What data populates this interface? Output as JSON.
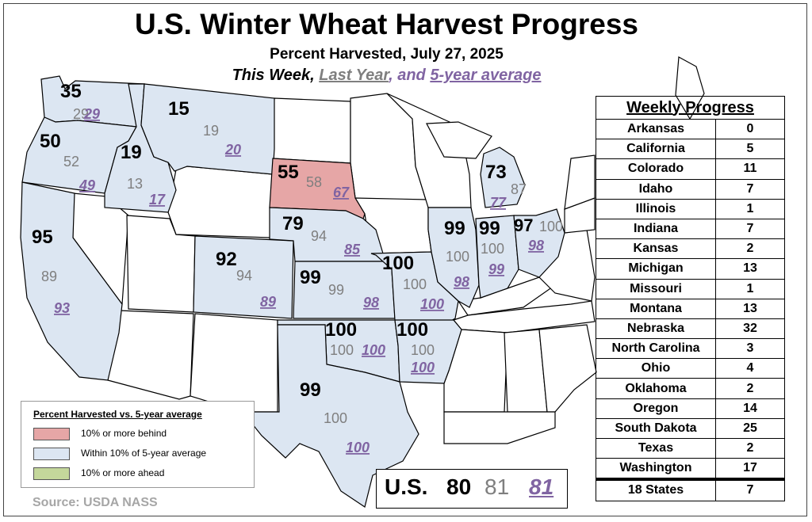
{
  "title": "U.S. Winter Wheat Harvest Progress",
  "subtitle": "Percent Harvested, July 27, 2025",
  "key_line": {
    "this_week": "This Week",
    "sep1": ", ",
    "last_year": "Last Year",
    "sep2": ", and ",
    "avg": "5-year average"
  },
  "colors": {
    "behind": "#e6a6a6",
    "within": "#dce6f2",
    "ahead": "#c4d79b",
    "unreported": "#ffffff",
    "last_year": "#7f7f7f",
    "avg": "#8064a2"
  },
  "states": [
    {
      "name": "Washington",
      "status": "within",
      "this_week": "35",
      "last_year": "29",
      "avg": "29"
    },
    {
      "name": "Oregon",
      "status": "within",
      "this_week": "50",
      "last_year": "52",
      "avg": "49"
    },
    {
      "name": "Idaho",
      "status": "within",
      "this_week": "19",
      "last_year": "13",
      "avg": "17"
    },
    {
      "name": "Montana",
      "status": "within",
      "this_week": "15",
      "last_year": "19",
      "avg": "20"
    },
    {
      "name": "California",
      "status": "within",
      "this_week": "95",
      "last_year": "89",
      "avg": "93"
    },
    {
      "name": "Colorado",
      "status": "within",
      "this_week": "92",
      "last_year": "94",
      "avg": "89"
    },
    {
      "name": "South Dakota",
      "status": "behind",
      "this_week": "55",
      "last_year": "58",
      "avg": "67"
    },
    {
      "name": "Nebraska",
      "status": "within",
      "this_week": "79",
      "last_year": "94",
      "avg": "85"
    },
    {
      "name": "Kansas",
      "status": "within",
      "this_week": "99",
      "last_year": "99",
      "avg": "98"
    },
    {
      "name": "Oklahoma",
      "status": "within",
      "this_week": "100",
      "last_year": "100",
      "avg": "100"
    },
    {
      "name": "Texas",
      "status": "within",
      "this_week": "99",
      "last_year": "100",
      "avg": "100"
    },
    {
      "name": "Missouri",
      "status": "within",
      "this_week": "100",
      "last_year": "100",
      "avg": "100"
    },
    {
      "name": "Arkansas",
      "status": "within",
      "this_week": "100",
      "last_year": "100",
      "avg": "100"
    },
    {
      "name": "Illinois",
      "status": "within",
      "this_week": "99",
      "last_year": "100",
      "avg": "98"
    },
    {
      "name": "Indiana",
      "status": "within",
      "this_week": "99",
      "last_year": "100",
      "avg": "99"
    },
    {
      "name": "Ohio",
      "status": "within",
      "this_week": "97",
      "last_year": "100",
      "avg": "98"
    },
    {
      "name": "Michigan",
      "status": "within",
      "this_week": "73",
      "last_year": "87",
      "avg": "77"
    }
  ],
  "weekly_progress": {
    "header": "Weekly Progress",
    "rows": [
      {
        "state": "Arkansas",
        "value": "0"
      },
      {
        "state": "California",
        "value": "5"
      },
      {
        "state": "Colorado",
        "value": "11"
      },
      {
        "state": "Idaho",
        "value": "7"
      },
      {
        "state": "Illinois",
        "value": "1"
      },
      {
        "state": "Indiana",
        "value": "7"
      },
      {
        "state": "Kansas",
        "value": "2"
      },
      {
        "state": "Michigan",
        "value": "13"
      },
      {
        "state": "Missouri",
        "value": "1"
      },
      {
        "state": "Montana",
        "value": "13"
      },
      {
        "state": "Nebraska",
        "value": "32"
      },
      {
        "state": "North Carolina",
        "value": "3"
      },
      {
        "state": "Ohio",
        "value": "4"
      },
      {
        "state": "Oklahoma",
        "value": "2"
      },
      {
        "state": "Oregon",
        "value": "14"
      },
      {
        "state": "South Dakota",
        "value": "25"
      },
      {
        "state": "Texas",
        "value": "2"
      },
      {
        "state": "Washington",
        "value": "17"
      }
    ],
    "total": {
      "state": "18 States",
      "value": "7"
    }
  },
  "legend": {
    "title": "Percent Harvested vs. 5-year average",
    "items": [
      {
        "label": "10% or more behind",
        "status": "behind"
      },
      {
        "label": "Within 10% of 5-year average",
        "status": "within"
      },
      {
        "label": "10% or more ahead",
        "status": "ahead"
      }
    ]
  },
  "us_total": {
    "label": "U.S.",
    "this_week": "80",
    "last_year": "81",
    "avg": "81"
  },
  "source": "Source: USDA NASS"
}
